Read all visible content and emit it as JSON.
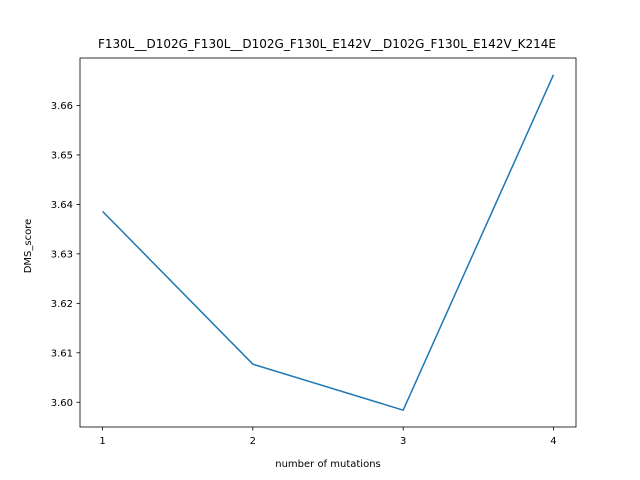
{
  "chart_data": {
    "type": "line",
    "title": "F130L__D102G_F130L__D102G_F130L_E142V__D102G_F130L_E142V_K214E",
    "xlabel": "number of mutations",
    "ylabel": "DMS_score",
    "x": [
      1,
      2,
      3,
      4
    ],
    "series": [
      {
        "values": [
          3.6386,
          3.6077,
          3.5984,
          3.6662
        ]
      }
    ],
    "x_ticks": [
      1,
      2,
      3,
      4
    ],
    "y_ticks": [
      3.6,
      3.61,
      3.62,
      3.63,
      3.64,
      3.65,
      3.66
    ],
    "y_tick_labels": [
      "3.60",
      "3.61",
      "3.62",
      "3.63",
      "3.64",
      "3.65",
      "3.66"
    ],
    "xlim": [
      0.85,
      4.15
    ],
    "ylim": [
      3.595,
      3.6696
    ],
    "grid": false,
    "line_color": "#1f77b4"
  }
}
